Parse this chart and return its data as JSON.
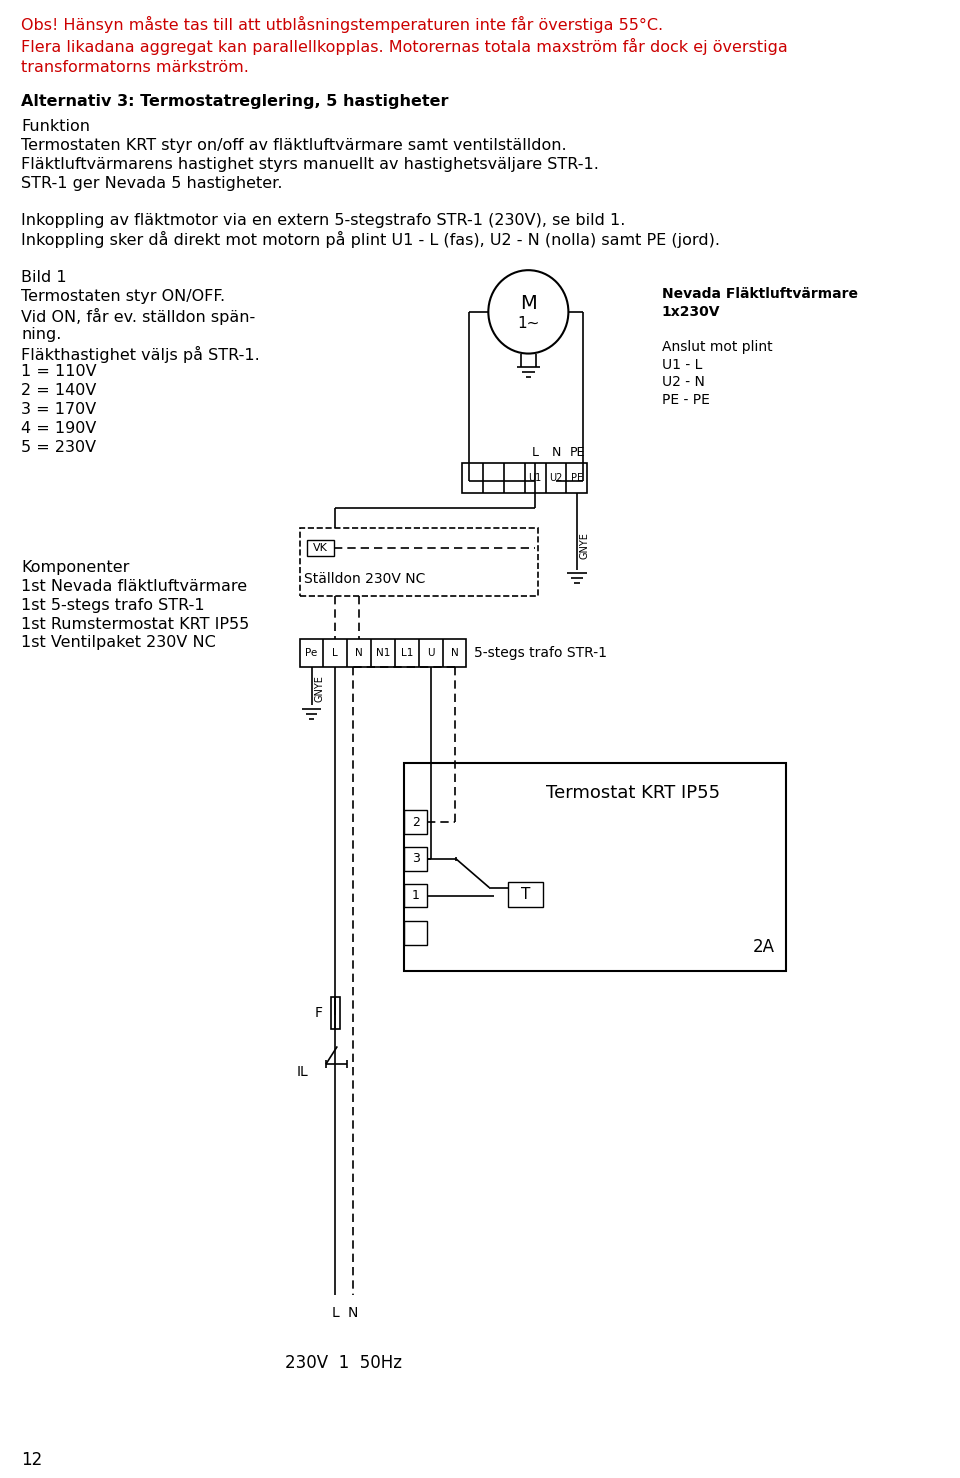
{
  "page_width": 9.6,
  "page_height": 14.78,
  "bg_color": "#ffffff",
  "text_color": "#000000",
  "red_color": "#cc0000",
  "header_lines": [
    "Obs! Hänsyn måste tas till att utblåsningstemperaturen inte får överstiga 55°C.",
    "Flera likadana aggregat kan parallellkopplas. Motorernas totala maxström får dock ej överstiga",
    "transformatorns märkström."
  ],
  "section_title": "Alternativ 3: Termostatreglering, 5 hastigheter",
  "funktion_lines": [
    "Funktion",
    "Termostaten KRT styr on/off av fläktluftvärmare samt ventilställdon.",
    "Fläktluftvärmarens hastighet styrs manuellt av hastighetsväljare STR-1.",
    "STR-1 ger Nevada 5 hastigheter."
  ],
  "inkoppling_lines": [
    "Inkoppling av fläktmotor via en extern 5-stegstrafo STR-1 (230V), se bild 1.",
    "Inkoppling sker då direkt mot motorn på plint U1 - L (fas), U2 - N (nolla) samt PE (jord)."
  ],
  "bild1_lines": [
    "Bild 1",
    "Termostaten styr ON/OFF.",
    "Vid ON, får ev. ställdon spän-",
    "ning.",
    "Fläkthastighet väljs på STR-1.",
    "1 = 110V",
    "2 = 140V",
    "3 = 170V",
    "4 = 190V",
    "5 = 230V"
  ],
  "komponenter_lines": [
    "Komponenter",
    "1st Nevada fläktluftvärmare",
    "1st 5-stegs trafo STR-1",
    "1st Rumstermostat KRT IP55",
    "1st Ventilpaket 230V NC"
  ],
  "page_number": "12"
}
